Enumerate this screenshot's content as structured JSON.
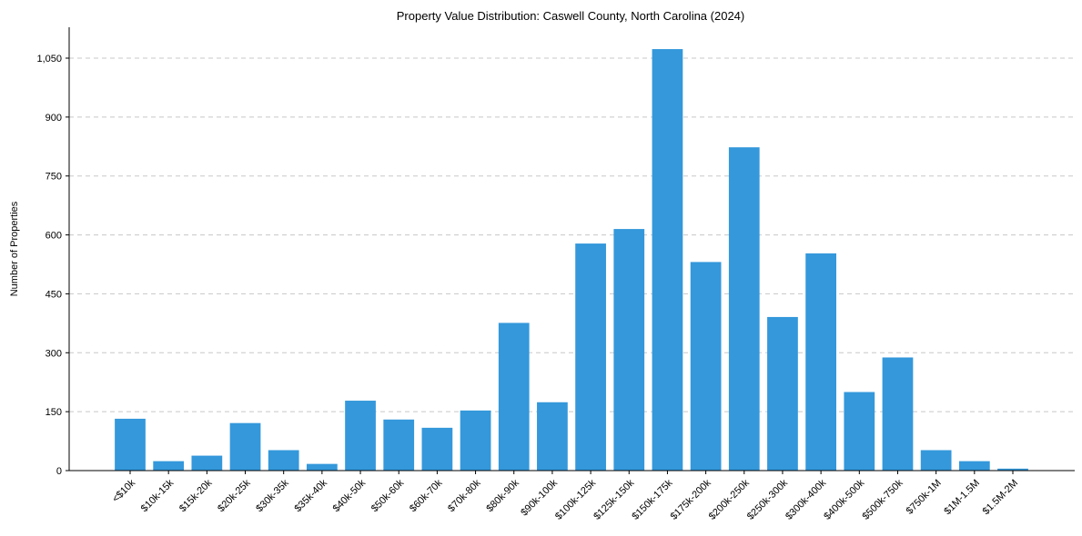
{
  "chart_data": {
    "type": "bar",
    "title": "Property Value Distribution: Caswell County, North Carolina (2024)",
    "xlabel": "",
    "ylabel": "Number of Properties",
    "ylim": [
      0,
      1125
    ],
    "yticks": [
      0,
      150,
      300,
      450,
      600,
      750,
      900,
      1050
    ],
    "ytick_labels": [
      "0",
      "150",
      "300",
      "450",
      "600",
      "750",
      "900",
      "1,050"
    ],
    "grid": "y-dashed",
    "color": "#3498db",
    "categories": [
      "<$10k",
      "$10k-15k",
      "$15k-20k",
      "$20k-25k",
      "$30k-35k",
      "$35k-40k",
      "$40k-50k",
      "$50k-60k",
      "$60k-70k",
      "$70k-80k",
      "$80k-90k",
      "$90k-100k",
      "$100k-125k",
      "$125k-150k",
      "$150k-175k",
      "$175k-200k",
      "$200k-250k",
      "$250k-300k",
      "$300k-400k",
      "$400k-500k",
      "$500k-750k",
      "$750k-1M",
      "$1M-1.5M",
      "$1.5M-2M"
    ],
    "values": [
      132,
      24,
      38,
      121,
      52,
      17,
      178,
      130,
      109,
      153,
      376,
      174,
      578,
      615,
      1073,
      531,
      823,
      391,
      553,
      200,
      288,
      52,
      24,
      5
    ]
  }
}
